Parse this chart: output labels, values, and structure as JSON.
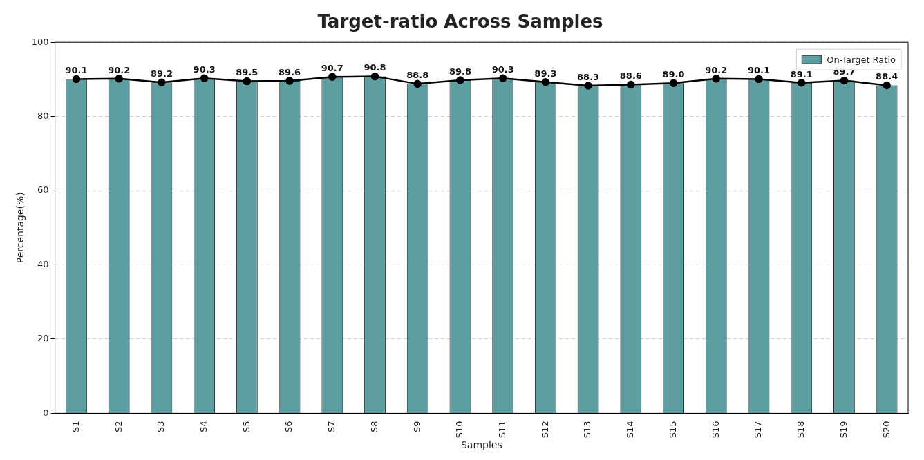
{
  "chart_data": {
    "type": "bar",
    "title": "Target-ratio Across Samples",
    "xlabel": "Samples",
    "ylabel": "Percentage(%)",
    "categories": [
      "S1",
      "S2",
      "S3",
      "S4",
      "S5",
      "S6",
      "S7",
      "S8",
      "S9",
      "S10",
      "S11",
      "S12",
      "S13",
      "S14",
      "S15",
      "S16",
      "S17",
      "S18",
      "S19",
      "S20"
    ],
    "series": [
      {
        "name": "On-Target Ratio",
        "color": "#5f9ea0",
        "values": [
          90.1,
          90.2,
          89.2,
          90.3,
          89.5,
          89.6,
          90.7,
          90.8,
          88.8,
          89.8,
          90.3,
          89.3,
          88.3,
          88.6,
          89.0,
          90.2,
          90.1,
          89.1,
          89.7,
          88.4
        ]
      },
      {
        "type": "line",
        "color": "#000000",
        "marker": "circle",
        "line_style": "solid",
        "values": [
          90.1,
          90.2,
          89.2,
          90.3,
          89.5,
          89.6,
          90.7,
          90.8,
          88.8,
          89.8,
          90.3,
          89.3,
          88.3,
          88.6,
          89.0,
          90.2,
          90.1,
          89.1,
          89.7,
          88.4
        ],
        "value_labels": [
          "90.1",
          "90.2",
          "89.2",
          "90.3",
          "89.5",
          "89.6",
          "90.7",
          "90.8",
          "88.8",
          "89.8",
          "90.3",
          "89.3",
          "88.3",
          "88.6",
          "89.0",
          "90.2",
          "90.1",
          "89.1",
          "89.7",
          "88.4"
        ]
      }
    ],
    "ylim": [
      0,
      100
    ],
    "yticks": [
      0,
      20,
      40,
      60,
      80,
      100
    ],
    "grid": "y",
    "legend": "top right"
  }
}
